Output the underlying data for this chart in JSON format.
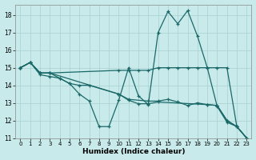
{
  "xlabel": "Humidex (Indice chaleur)",
  "bg_color": "#c8eaea",
  "grid_color": "#a8d0d0",
  "line_color": "#1a6868",
  "xlim": [
    -0.5,
    23.5
  ],
  "ylim": [
    11,
    18.6
  ],
  "yticks": [
    11,
    12,
    13,
    14,
    15,
    16,
    17,
    18
  ],
  "xticks": [
    0,
    1,
    2,
    3,
    4,
    5,
    6,
    7,
    8,
    9,
    10,
    11,
    12,
    13,
    14,
    15,
    16,
    17,
    18,
    19,
    20,
    21,
    22,
    23
  ],
  "lines": [
    {
      "x": [
        0,
        1,
        2,
        3,
        4,
        5,
        6,
        7,
        8,
        9,
        10,
        11,
        12,
        13,
        14,
        15,
        16,
        17,
        18,
        19,
        20,
        21,
        22,
        23
      ],
      "y": [
        15.0,
        15.3,
        14.6,
        14.5,
        14.4,
        14.1,
        13.5,
        13.1,
        11.65,
        11.65,
        13.15,
        15.0,
        13.4,
        12.9,
        17.0,
        18.2,
        17.5,
        18.25,
        16.8,
        15.0,
        12.8,
        11.9,
        11.65,
        11.0
      ]
    },
    {
      "x": [
        0,
        1,
        2,
        3,
        10,
        11,
        12,
        13,
        14,
        15,
        16,
        17,
        18,
        19,
        20,
        21,
        22,
        23
      ],
      "y": [
        15.0,
        15.3,
        14.7,
        14.7,
        14.85,
        14.85,
        14.85,
        14.85,
        15.0,
        15.0,
        15.0,
        15.0,
        15.0,
        15.0,
        15.0,
        15.0,
        11.65,
        11.0
      ]
    },
    {
      "x": [
        0,
        1,
        2,
        3,
        10,
        11,
        13,
        14,
        15,
        16,
        17,
        18,
        19,
        20,
        21,
        22,
        23
      ],
      "y": [
        15.0,
        15.3,
        14.7,
        14.7,
        13.5,
        13.2,
        13.1,
        13.1,
        13.2,
        13.05,
        12.85,
        13.0,
        12.9,
        12.85,
        12.0,
        11.65,
        11.0
      ]
    },
    {
      "x": [
        0,
        1,
        2,
        3,
        4,
        5,
        6,
        7,
        10,
        11,
        12,
        13,
        14,
        19,
        20,
        21,
        22,
        23
      ],
      "y": [
        15.0,
        15.3,
        14.7,
        14.7,
        14.4,
        14.1,
        14.0,
        14.0,
        13.5,
        13.15,
        12.95,
        12.95,
        13.05,
        12.9,
        12.85,
        12.0,
        11.65,
        11.0
      ]
    }
  ]
}
